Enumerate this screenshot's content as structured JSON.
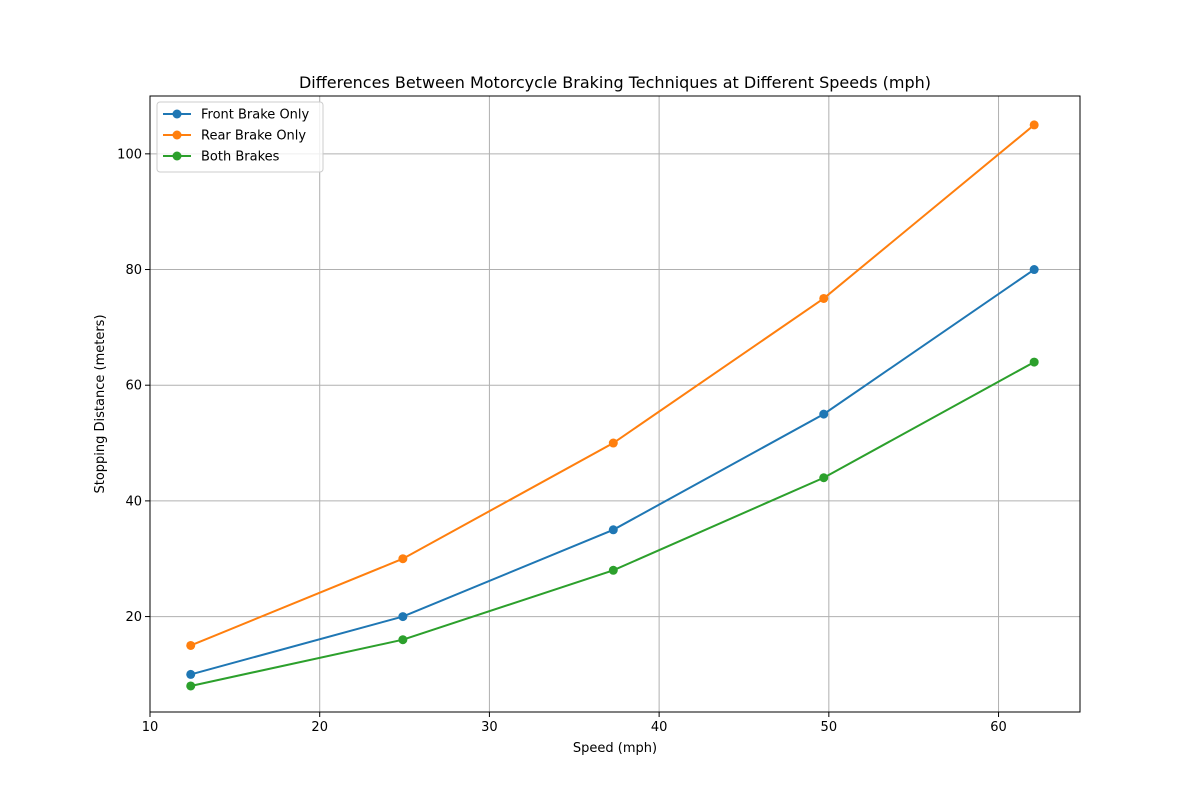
{
  "chart_data": {
    "type": "line",
    "title": "Differences Between Motorcycle Braking Techniques at Different Speeds (mph)",
    "xlabel": "Speed (mph)",
    "ylabel": "Stopping Distance (meters)",
    "x": [
      12.4,
      24.9,
      37.3,
      49.7,
      62.1
    ],
    "xlim": [
      10,
      64.8
    ],
    "ylim": [
      3.5,
      110
    ],
    "xticks": [
      10,
      20,
      30,
      40,
      50,
      60
    ],
    "yticks": [
      20,
      40,
      60,
      80,
      100
    ],
    "grid": true,
    "legend_position": "top-left",
    "series": [
      {
        "name": "Front Brake Only",
        "color": "#1f77b4",
        "values": [
          10,
          20,
          35,
          55,
          80
        ]
      },
      {
        "name": "Rear Brake Only",
        "color": "#ff7f0e",
        "values": [
          15,
          30,
          50,
          75,
          105
        ]
      },
      {
        "name": "Both Brakes",
        "color": "#2ca02c",
        "values": [
          8,
          16,
          28,
          44,
          64
        ]
      }
    ]
  }
}
